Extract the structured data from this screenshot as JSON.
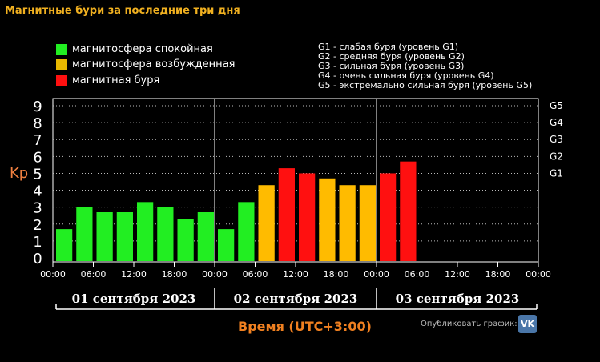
{
  "title": "Магнитные бури за последние три дня",
  "legend": [
    {
      "label": "магнитосфера спокойная",
      "color": "#22ee22"
    },
    {
      "label": "магнитосфера возбужденная",
      "color": "#e8b800"
    },
    {
      "label": "магнитная буря",
      "color": "#ff1010"
    }
  ],
  "g_levels": [
    "G1 - слабая буря (уровень G1)",
    "G2 - средняя буря (уровень G2)",
    "G3 - сильная буря (уровень G3)",
    "G4 - очень сильная буря (уровень G4)",
    "G5 - экстремально сильная буря (уровень G5)"
  ],
  "publish_label": "Опубликовать график:",
  "vk_label": "VK",
  "colors": {
    "quiet": "#22ee22",
    "active": "#ffbb00",
    "storm": "#ff1010",
    "orange_text": "#f08020"
  },
  "chart_data": {
    "type": "bar",
    "ylabel": "Kp",
    "xlabel": "Время (UTC+3:00)",
    "ylim": [
      0,
      9
    ],
    "yticks": [
      "0",
      "1",
      "2",
      "3",
      "4",
      "5",
      "6",
      "7",
      "8",
      "9"
    ],
    "right_ticks": [
      {
        "label": "G1",
        "value": 5
      },
      {
        "label": "G2",
        "value": 6
      },
      {
        "label": "G3",
        "value": 7
      },
      {
        "label": "G4",
        "value": 8
      },
      {
        "label": "G5",
        "value": 9
      }
    ],
    "xticks": [
      "00:00",
      "06:00",
      "12:00",
      "18:00",
      "00:00",
      "06:00",
      "12:00",
      "18:00",
      "00:00",
      "06:00",
      "12:00",
      "18:00",
      "00:00"
    ],
    "days": [
      "01 сентября 2023",
      "02 сентября 2023",
      "03 сентября 2023"
    ],
    "grid": true,
    "slots_total": 24,
    "values": [
      1.7,
      3.0,
      2.7,
      2.7,
      3.3,
      3.0,
      2.3,
      2.7,
      1.7,
      3.3,
      4.3,
      5.3,
      5.0,
      4.7,
      4.3,
      4.3,
      5.0,
      5.7
    ],
    "bar_levels": [
      "quiet",
      "quiet",
      "quiet",
      "quiet",
      "quiet",
      "quiet",
      "quiet",
      "quiet",
      "quiet",
      "quiet",
      "active",
      "storm",
      "storm",
      "active",
      "active",
      "active",
      "storm",
      "storm"
    ]
  }
}
